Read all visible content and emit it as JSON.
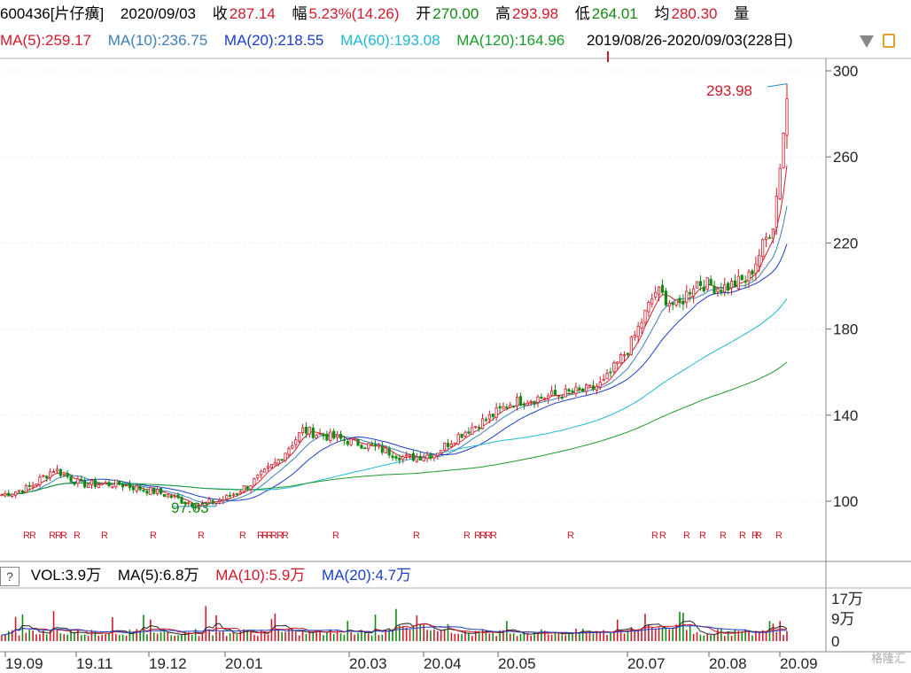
{
  "header": {
    "code_name": "600436[片仔癀]",
    "date": "2020/09/03",
    "close_label": "收",
    "close": "287.14",
    "change_label": "幅",
    "change": "5.23%(14.26)",
    "open_label": "开",
    "open": "270.00",
    "high_label": "高",
    "high": "293.98",
    "low_label": "低",
    "low": "264.01",
    "avg_label": "均",
    "avg": "280.30",
    "vol_label": "量"
  },
  "ma_line": {
    "ma5": "MA(5):259.17",
    "ma10": "MA(10):236.75",
    "ma20": "MA(20):218.55",
    "ma60": "MA(60):193.08",
    "ma120": "MA(120):164.96",
    "range": "2019/08/26-2020/09/03(228日)"
  },
  "vol_line": {
    "help": "?",
    "vol": "VOL:3.9万",
    "ma5": "MA(5):6.8万",
    "ma10": "MA(10):5.9万",
    "ma20": "MA(20):4.7万"
  },
  "watermark": "格隆汇",
  "colors": {
    "up": "#d11a2a",
    "down": "#128a12",
    "ma5": "#d11a2a",
    "ma10": "#3e7fb6",
    "ma20": "#1a3fc8",
    "ma60": "#1fb8d4",
    "ma120": "#1a9a2a"
  },
  "chart_data": [
    {
      "type": "candlestick",
      "title": "600436[片仔癀]",
      "ylim": [
        80,
        300
      ],
      "y_ticks": [
        "300",
        "260",
        "220",
        "180",
        "140",
        "100"
      ],
      "x_ticks": [
        "19.09",
        "19.11",
        "19.12",
        "20.01",
        "20.03",
        "20.04",
        "20.05",
        "20.07",
        "20.08",
        "20.09"
      ],
      "annotations": [
        {
          "text": "293.98",
          "type": "max",
          "x": "2020/09/03"
        },
        {
          "text": "97.63",
          "type": "min",
          "x": "2019/12"
        }
      ],
      "r_markers": [
        "R",
        "R",
        "R",
        "R",
        "R",
        "R",
        "R",
        "R",
        "R",
        "R",
        "R",
        "R",
        "R",
        "R",
        "R",
        "R",
        "R",
        "R",
        "R",
        "R",
        "R",
        "R",
        "R",
        "R",
        "R",
        "R",
        "R",
        "R",
        "R",
        "R"
      ],
      "series": [
        {
          "name": "close",
          "x": [
            "19.09",
            "19.11",
            "19.12",
            "20.01",
            "20.02",
            "20.03",
            "20.04",
            "20.05",
            "20.06",
            "20.07",
            "20.08",
            "20.09"
          ],
          "values": [
            104,
            110,
            100,
            108,
            128,
            120,
            128,
            143,
            150,
            200,
            203,
            287
          ]
        },
        {
          "name": "MA(5)",
          "values": [
            259.17
          ]
        },
        {
          "name": "MA(10)",
          "values": [
            236.75
          ]
        },
        {
          "name": "MA(20)",
          "values": [
            218.55
          ]
        },
        {
          "name": "MA(60)",
          "values": [
            193.08
          ]
        },
        {
          "name": "MA(120)",
          "values": [
            164.96
          ]
        }
      ]
    },
    {
      "type": "bar",
      "title": "VOL",
      "y_ticks": [
        "17万",
        "9万",
        "0"
      ],
      "series": [
        {
          "name": "VOL",
          "values": [
            3.9
          ]
        },
        {
          "name": "MA(5)",
          "values": [
            6.8
          ]
        },
        {
          "name": "MA(10)",
          "values": [
            5.9
          ]
        },
        {
          "name": "MA(20)",
          "values": [
            4.7
          ]
        }
      ]
    }
  ]
}
